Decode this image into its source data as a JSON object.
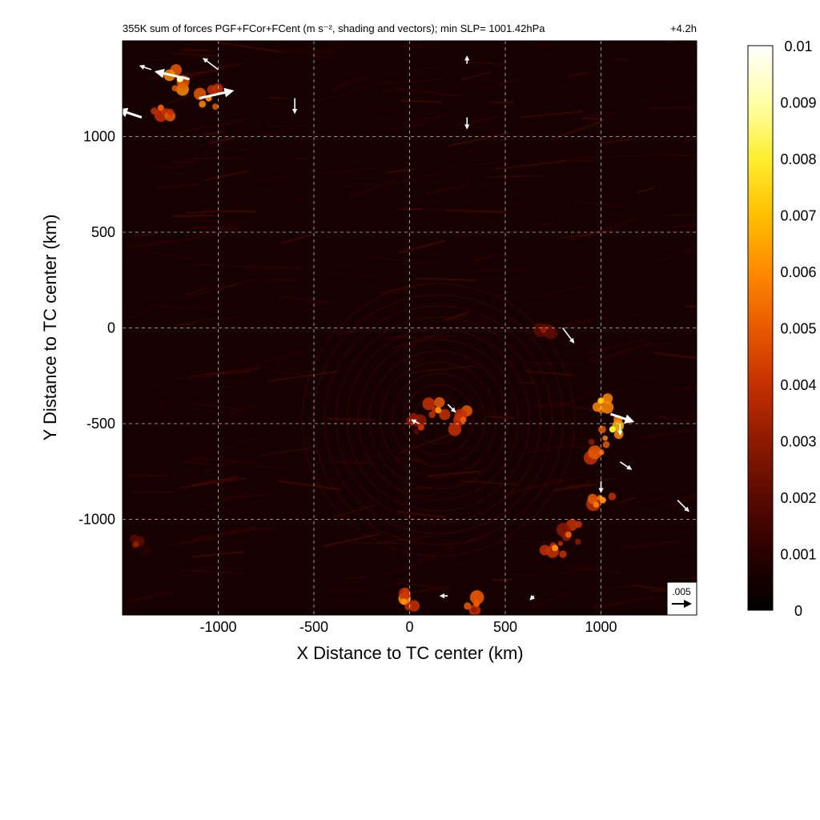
{
  "chart_data": {
    "type": "heatmap",
    "title": "355K sum of forces PGF+FCor+FCent (m s⁻², shading and vectors); min SLP= 1001.42hPa",
    "time_label": "+4.2h",
    "xlabel": "X Distance to TC center (km)",
    "ylabel": "Y Distance to TC center (km)",
    "xlim": [
      -1500,
      1500
    ],
    "ylim": [
      -1500,
      1500
    ],
    "x_ticks": [
      -1000,
      -500,
      0,
      500,
      1000
    ],
    "y_ticks": [
      1000,
      500,
      0,
      -500,
      -1000
    ],
    "grid": true,
    "colorbar": {
      "min": 0,
      "max": 0.01,
      "ticks": [
        "0.01",
        "0.009",
        "0.008",
        "0.007",
        "0.006",
        "0.005",
        "0.004",
        "0.003",
        "0.002",
        "0.001",
        "0"
      ],
      "colors": [
        "#000000",
        "#2a0000",
        "#5a0a00",
        "#8e1a00",
        "#c43000",
        "#e85a00",
        "#ff8a00",
        "#ffbf00",
        "#ffee30",
        "#ffffa8",
        "#ffffff"
      ]
    },
    "reference_vector": {
      "label": ".005",
      "magnitude": 0.005
    },
    "hotspots": [
      {
        "x": -1200,
        "y": 1300,
        "intensity": 0.0085
      },
      {
        "x": -1050,
        "y": 1200,
        "intensity": 0.006
      },
      {
        "x": -1300,
        "y": 1150,
        "intensity": 0.005
      },
      {
        "x": 150,
        "y": -430,
        "intensity": 0.0065
      },
      {
        "x": 280,
        "y": -480,
        "intensity": 0.005
      },
      {
        "x": 60,
        "y": -520,
        "intensity": 0.004
      },
      {
        "x": 1000,
        "y": -380,
        "intensity": 0.007
      },
      {
        "x": 1060,
        "y": -530,
        "intensity": 0.0075
      },
      {
        "x": 1000,
        "y": -650,
        "intensity": 0.0055
      },
      {
        "x": 1010,
        "y": -900,
        "intensity": 0.006
      },
      {
        "x": 830,
        "y": -1080,
        "intensity": 0.005
      },
      {
        "x": 760,
        "y": -1150,
        "intensity": 0.0065
      },
      {
        "x": -30,
        "y": -1430,
        "intensity": 0.006
      },
      {
        "x": 350,
        "y": -1440,
        "intensity": 0.005
      },
      {
        "x": 700,
        "y": -10,
        "intensity": 0.003
      },
      {
        "x": -1430,
        "y": -1130,
        "intensity": 0.0025
      }
    ],
    "vectors": [
      {
        "x": -1150,
        "y": 1300,
        "u": -0.009,
        "v": 0.002
      },
      {
        "x": -1100,
        "y": 1200,
        "u": 0.009,
        "v": 0.002
      },
      {
        "x": -1400,
        "y": 1100,
        "u": -0.006,
        "v": 0.002
      },
      {
        "x": -1000,
        "y": 1350,
        "u": -0.004,
        "v": 0.003
      },
      {
        "x": -1350,
        "y": 1350,
        "u": -0.003,
        "v": 0.001
      },
      {
        "x": -600,
        "y": 1200,
        "u": 0.0,
        "v": -0.004
      },
      {
        "x": 300,
        "y": 1100,
        "u": 0.0,
        "v": -0.003
      },
      {
        "x": 300,
        "y": 1380,
        "u": 0.0,
        "v": 0.002
      },
      {
        "x": 800,
        "y": 0,
        "u": 0.003,
        "v": -0.004
      },
      {
        "x": 1050,
        "y": -450,
        "u": 0.006,
        "v": -0.002
      },
      {
        "x": 1100,
        "y": -700,
        "u": 0.003,
        "v": -0.002
      },
      {
        "x": 1400,
        "y": -900,
        "u": 0.003,
        "v": -0.003
      },
      {
        "x": 200,
        "y": -400,
        "u": 0.002,
        "v": -0.002
      },
      {
        "x": 1100,
        "y": -500,
        "u": 0.0,
        "v": -0.003
      },
      {
        "x": 1000,
        "y": -800,
        "u": 0.0,
        "v": -0.003
      },
      {
        "x": 200,
        "y": -1400,
        "u": -0.002,
        "v": 0.0
      },
      {
        "x": 650,
        "y": -1400,
        "u": -0.001,
        "v": -0.001
      },
      {
        "x": 50,
        "y": -500,
        "u": -0.002,
        "v": 0.001
      }
    ]
  }
}
